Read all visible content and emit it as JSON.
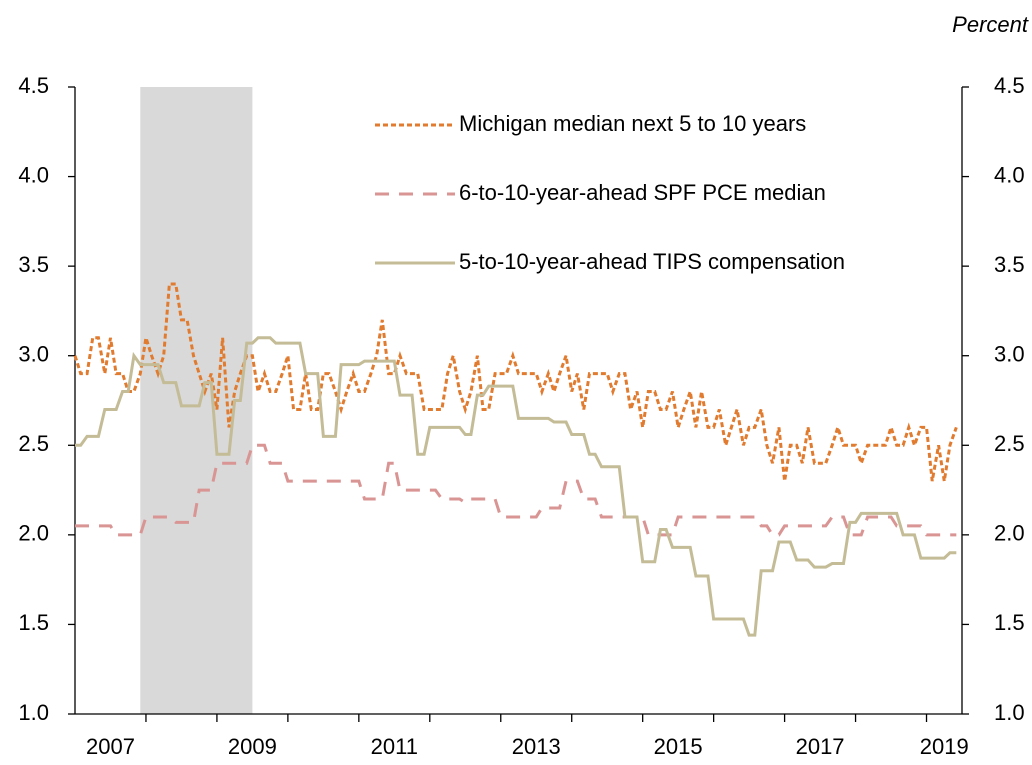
{
  "chart_data": {
    "type": "line",
    "unit_label": "Percent",
    "x": [
      2007.0,
      2007.08,
      2007.17,
      2007.25,
      2007.33,
      2007.42,
      2007.5,
      2007.58,
      2007.67,
      2007.75,
      2007.83,
      2007.92,
      2008.0,
      2008.08,
      2008.17,
      2008.25,
      2008.33,
      2008.42,
      2008.5,
      2008.58,
      2008.67,
      2008.75,
      2008.83,
      2008.92,
      2009.0,
      2009.08,
      2009.17,
      2009.25,
      2009.33,
      2009.42,
      2009.5,
      2009.58,
      2009.67,
      2009.75,
      2009.83,
      2009.92,
      2010.0,
      2010.08,
      2010.17,
      2010.25,
      2010.33,
      2010.42,
      2010.5,
      2010.58,
      2010.67,
      2010.75,
      2010.83,
      2010.92,
      2011.0,
      2011.08,
      2011.17,
      2011.25,
      2011.33,
      2011.42,
      2011.5,
      2011.58,
      2011.67,
      2011.75,
      2011.83,
      2011.92,
      2012.0,
      2012.08,
      2012.17,
      2012.25,
      2012.33,
      2012.42,
      2012.5,
      2012.58,
      2012.67,
      2012.75,
      2012.83,
      2012.92,
      2013.0,
      2013.08,
      2013.17,
      2013.25,
      2013.33,
      2013.42,
      2013.5,
      2013.58,
      2013.67,
      2013.75,
      2013.83,
      2013.92,
      2014.0,
      2014.08,
      2014.17,
      2014.25,
      2014.33,
      2014.42,
      2014.5,
      2014.58,
      2014.67,
      2014.75,
      2014.83,
      2014.92,
      2015.0,
      2015.08,
      2015.17,
      2015.25,
      2015.33,
      2015.42,
      2015.5,
      2015.58,
      2015.67,
      2015.75,
      2015.83,
      2015.92,
      2016.0,
      2016.08,
      2016.17,
      2016.25,
      2016.33,
      2016.42,
      2016.5,
      2016.58,
      2016.67,
      2016.75,
      2016.83,
      2016.92,
      2017.0,
      2017.08,
      2017.17,
      2017.25,
      2017.33,
      2017.42,
      2017.5,
      2017.58,
      2017.67,
      2017.75,
      2017.83,
      2017.92,
      2018.0,
      2018.08,
      2018.17,
      2018.25,
      2018.33,
      2018.42,
      2018.5,
      2018.58,
      2018.67,
      2018.75,
      2018.83,
      2018.92,
      2019.0,
      2019.08,
      2019.17,
      2019.25,
      2019.33,
      2019.42
    ],
    "series": [
      {
        "name": "Michigan median next 5 to 10 years",
        "color": "#E07B2F",
        "dash": "dotted",
        "values": [
          3.0,
          2.9,
          2.9,
          3.1,
          3.1,
          2.9,
          3.1,
          2.9,
          2.9,
          2.8,
          2.8,
          2.9,
          3.1,
          3.0,
          2.9,
          3.0,
          3.4,
          3.4,
          3.2,
          3.2,
          3.0,
          2.9,
          2.8,
          2.9,
          2.7,
          3.1,
          2.6,
          2.8,
          2.9,
          3.0,
          3.0,
          2.8,
          2.9,
          2.8,
          2.8,
          2.9,
          3.0,
          2.7,
          2.7,
          2.9,
          2.7,
          2.7,
          2.9,
          2.9,
          2.8,
          2.7,
          2.8,
          2.9,
          2.8,
          2.8,
          2.9,
          3.0,
          3.2,
          2.9,
          2.9,
          3.0,
          2.9,
          2.9,
          2.9,
          2.7,
          2.7,
          2.7,
          2.7,
          2.9,
          3.0,
          2.8,
          2.7,
          2.8,
          3.0,
          2.7,
          2.7,
          2.9,
          2.9,
          2.9,
          3.0,
          2.9,
          2.9,
          2.9,
          2.9,
          2.8,
          2.9,
          2.8,
          2.9,
          3.0,
          2.8,
          2.9,
          2.7,
          2.9,
          2.9,
          2.9,
          2.9,
          2.8,
          2.9,
          2.9,
          2.7,
          2.8,
          2.6,
          2.8,
          2.8,
          2.7,
          2.7,
          2.8,
          2.6,
          2.7,
          2.8,
          2.6,
          2.8,
          2.6,
          2.6,
          2.7,
          2.5,
          2.6,
          2.7,
          2.5,
          2.6,
          2.6,
          2.7,
          2.5,
          2.4,
          2.6,
          2.3,
          2.5,
          2.5,
          2.4,
          2.6,
          2.4,
          2.4,
          2.4,
          2.5,
          2.6,
          2.5,
          2.5,
          2.5,
          2.4,
          2.5,
          2.5,
          2.5,
          2.5,
          2.6,
          2.5,
          2.5,
          2.6,
          2.5,
          2.6,
          2.6,
          2.3,
          2.5,
          2.3,
          2.5,
          2.6
        ]
      },
      {
        "name": "6-to-10-year-ahead SPF PCE median",
        "color": "#D99594",
        "dash": "dashed",
        "values": [
          2.05,
          2.05,
          2.05,
          2.05,
          2.05,
          2.05,
          2.05,
          2.0,
          2.0,
          2.0,
          2.0,
          2.0,
          2.1,
          2.1,
          2.1,
          2.1,
          2.1,
          2.07,
          2.07,
          2.07,
          2.07,
          2.25,
          2.25,
          2.25,
          2.4,
          2.4,
          2.4,
          2.4,
          2.4,
          2.4,
          2.5,
          2.5,
          2.5,
          2.4,
          2.4,
          2.4,
          2.3,
          2.3,
          2.3,
          2.3,
          2.3,
          2.3,
          2.3,
          2.3,
          2.3,
          2.3,
          2.3,
          2.3,
          2.3,
          2.2,
          2.2,
          2.2,
          2.2,
          2.4,
          2.4,
          2.25,
          2.25,
          2.25,
          2.25,
          2.25,
          2.25,
          2.25,
          2.2,
          2.2,
          2.2,
          2.2,
          2.18,
          2.2,
          2.2,
          2.2,
          2.2,
          2.2,
          2.1,
          2.1,
          2.1,
          2.1,
          2.1,
          2.1,
          2.1,
          2.15,
          2.15,
          2.15,
          2.15,
          2.3,
          2.3,
          2.3,
          2.2,
          2.2,
          2.2,
          2.1,
          2.1,
          2.1,
          2.1,
          2.1,
          2.1,
          2.1,
          2.1,
          2.0,
          2.0,
          2.0,
          2.0,
          2.0,
          2.1,
          2.1,
          2.1,
          2.1,
          2.1,
          2.1,
          2.1,
          2.1,
          2.1,
          2.1,
          2.1,
          2.1,
          2.1,
          2.1,
          2.05,
          2.05,
          2.0,
          2.0,
          2.05,
          2.05,
          2.05,
          2.05,
          2.05,
          2.05,
          2.05,
          2.05,
          2.1,
          2.1,
          2.1,
          2.0,
          2.0,
          2.0,
          2.1,
          2.1,
          2.1,
          2.1,
          2.1,
          2.05,
          2.05,
          2.05,
          2.05,
          2.05,
          2.0,
          2.0,
          2.0,
          2.0,
          2.0,
          2.0
        ]
      },
      {
        "name": "5-to-10-year-ahead TIPS compensation",
        "color": "#C4BC96",
        "dash": "solid",
        "values": [
          2.5,
          2.5,
          2.55,
          2.55,
          2.55,
          2.7,
          2.7,
          2.7,
          2.8,
          2.8,
          3.0,
          2.95,
          2.95,
          2.95,
          2.95,
          2.85,
          2.85,
          2.85,
          2.72,
          2.72,
          2.72,
          2.72,
          2.85,
          2.85,
          2.45,
          2.45,
          2.45,
          2.75,
          2.75,
          3.07,
          3.07,
          3.1,
          3.1,
          3.1,
          3.07,
          3.07,
          3.07,
          3.07,
          3.07,
          2.9,
          2.9,
          2.9,
          2.55,
          2.55,
          2.55,
          2.95,
          2.95,
          2.95,
          2.95,
          2.97,
          2.97,
          2.97,
          2.97,
          2.97,
          2.97,
          2.78,
          2.78,
          2.78,
          2.45,
          2.45,
          2.6,
          2.6,
          2.6,
          2.6,
          2.6,
          2.6,
          2.56,
          2.56,
          2.78,
          2.78,
          2.83,
          2.83,
          2.83,
          2.83,
          2.83,
          2.65,
          2.65,
          2.65,
          2.65,
          2.65,
          2.65,
          2.63,
          2.63,
          2.63,
          2.56,
          2.56,
          2.56,
          2.45,
          2.45,
          2.38,
          2.38,
          2.38,
          2.38,
          2.1,
          2.1,
          2.1,
          1.85,
          1.85,
          1.85,
          2.03,
          2.03,
          1.93,
          1.93,
          1.93,
          1.93,
          1.77,
          1.77,
          1.77,
          1.53,
          1.53,
          1.53,
          1.53,
          1.53,
          1.53,
          1.44,
          1.44,
          1.8,
          1.8,
          1.8,
          1.96,
          1.96,
          1.96,
          1.86,
          1.86,
          1.86,
          1.82,
          1.82,
          1.82,
          1.84,
          1.84,
          1.84,
          2.07,
          2.07,
          2.12,
          2.12,
          2.12,
          2.12,
          2.12,
          2.12,
          2.12,
          2.0,
          2.0,
          2.0,
          1.87,
          1.87,
          1.87,
          1.87,
          1.87,
          1.9,
          1.9
        ]
      }
    ],
    "shading": {
      "span": [
        2007.92,
        2009.5
      ],
      "color": "#D9D9D9"
    },
    "xlim": [
      2007,
      2019.5
    ],
    "xtick_marks": [
      2008,
      2009,
      2010,
      2011,
      2012,
      2013,
      2014,
      2015,
      2016,
      2017,
      2018,
      2019
    ],
    "xticks": [
      {
        "value": 2007.5,
        "label": "2007"
      },
      {
        "value": 2009.5,
        "label": "2009"
      },
      {
        "value": 2011.5,
        "label": "2011"
      },
      {
        "value": 2013.5,
        "label": "2013"
      },
      {
        "value": 2015.5,
        "label": "2015"
      },
      {
        "value": 2017.5,
        "label": "2017"
      },
      {
        "value": 2019.25,
        "label": "2019"
      }
    ],
    "ylim": [
      1.0,
      4.5
    ],
    "yticks": [
      {
        "value": 1.0,
        "label": "1.0"
      },
      1.5,
      {
        "value": 2.0,
        "label": "2.0"
      },
      2.5,
      {
        "value": 3.0,
        "label": "3.0"
      },
      3.5,
      {
        "value": 4.0,
        "label": "4.0"
      },
      4.5
    ],
    "y2lim": [
      1.0,
      4.5
    ],
    "y2ticks": [
      {
        "value": 1.0,
        "label": "1.0"
      },
      1.5,
      {
        "value": 2.0,
        "label": "2.0"
      },
      2.5,
      {
        "value": 3.0,
        "label": "3.0"
      },
      3.5,
      {
        "value": 4.0,
        "label": "4.0"
      },
      4.5
    ],
    "grid": false,
    "legend": "upper right"
  }
}
